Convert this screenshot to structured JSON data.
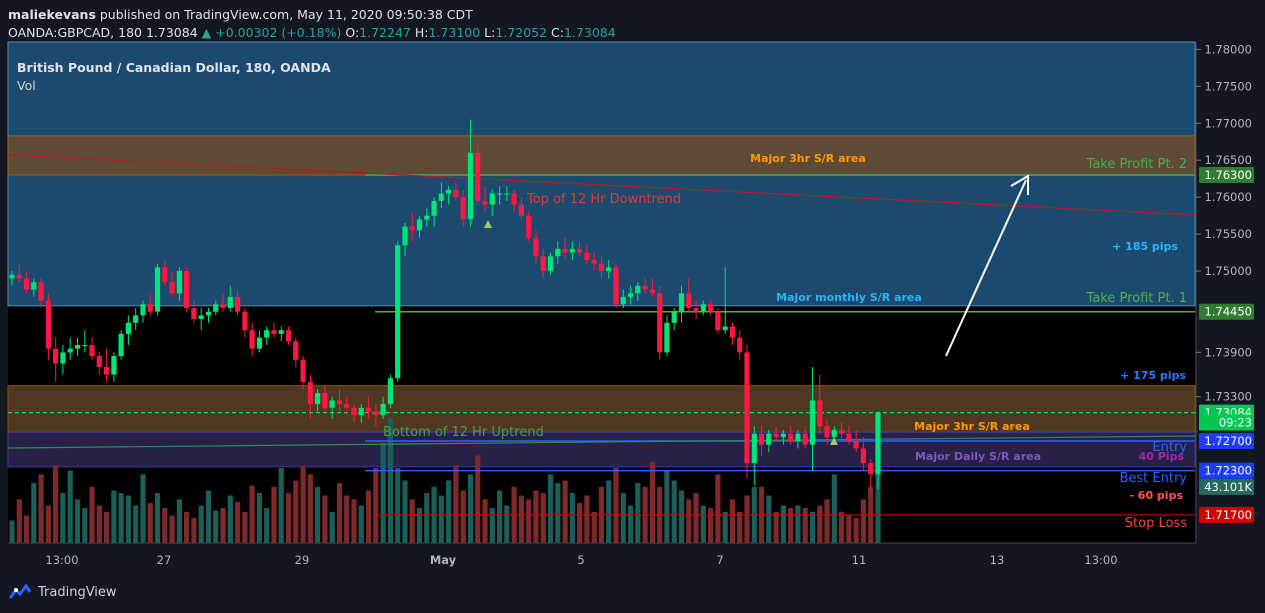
{
  "header": {
    "user": "maliekevans",
    "published_text": " published on TradingView.com, May 11, 2020 09:50:38 CDT",
    "symbol": "OANDA:GBPCAD, 180",
    "price": "1.73084",
    "change": "+0.00302 (+0.18%)",
    "open_label": "O:",
    "open": "1.72247",
    "high_label": "H:",
    "high": "1.73100",
    "low_label": "L:",
    "low": "1.72052",
    "close_label": "C:",
    "close": "1.73084"
  },
  "legend": {
    "title": "British Pound / Canadian Dollar, 180, OANDA",
    "indicator": "Vol"
  },
  "footer": {
    "brand": "TradingView"
  },
  "colors": {
    "bg": "#131722",
    "up": "#00e676",
    "down": "#ff1744",
    "vol_up": "#1b5e5a",
    "vol_down": "#7f2a2a",
    "blue_zone": "#1c4a6e",
    "orange_zone": "#6b4a2e",
    "purple_zone": "#2e2450"
  },
  "chart_data": {
    "type": "candlestick",
    "title": "British Pound / Canadian Dollar, 180, OANDA",
    "ylim": [
      1.7132,
      1.781
    ],
    "y_ticks": [
      "1.78000",
      "1.77500",
      "1.77000",
      "1.76500",
      "1.76000",
      "1.75500",
      "1.75000",
      "1.73900",
      "1.73300"
    ],
    "x_ticks": [
      "13:00",
      "27",
      "29",
      "May",
      "5",
      "7",
      "11",
      "13",
      "13:00"
    ],
    "price_badges": [
      {
        "label": "1.76300",
        "value": 1.763,
        "color": "#2e7d32"
      },
      {
        "label": "1.74450",
        "value": 1.7445,
        "color": "#2e7d32"
      },
      {
        "label": "1.73084",
        "value": 1.73084,
        "color": "#00c853"
      },
      {
        "label": "09:23",
        "value": 1.7295,
        "color": "#00c853"
      },
      {
        "label": "1.72700",
        "value": 1.727,
        "color": "#1e3cff"
      },
      {
        "label": "1.72300",
        "value": 1.723,
        "color": "#1e3cff"
      },
      {
        "label": "43.101K",
        "value": 1.7208,
        "color": "#26695f"
      },
      {
        "label": "1.71700",
        "value": 1.717,
        "color": "#d50000"
      }
    ],
    "zones": [
      {
        "name": "blue-zone",
        "y1": 1.781,
        "y2": 1.7453,
        "label": ""
      },
      {
        "name": "orange-zone-top",
        "y1": 1.7683,
        "y2": 1.763,
        "label": "Major 3hr S/R area"
      },
      {
        "name": "orange-zone-bottom",
        "y1": 1.7345,
        "y2": 1.7282,
        "label": "Major 3hr S/R area"
      },
      {
        "name": "purple-zone",
        "y1": 1.7282,
        "y2": 1.7235,
        "label": "Major Daily S/R area"
      }
    ],
    "zone_labels": {
      "major_monthly": "Major monthly S/R area",
      "pips_185": "+ 185 pips",
      "pips_175": "+ 175 pips",
      "pips_40": "40 Pips",
      "pips_60": "- 60 pips"
    },
    "levels": {
      "take_profit_2": {
        "label": "Take Profit Pt. 2",
        "value": 1.763
      },
      "take_profit_1": {
        "label": "Take Profit Pt. 1",
        "value": 1.7445
      },
      "entry": {
        "label": "Entry",
        "value": 1.727
      },
      "best_entry": {
        "label": "Best Entry",
        "value": 1.723
      },
      "stop_loss": {
        "label": "Stop Loss",
        "value": 1.717
      },
      "current": {
        "value": 1.73084
      }
    },
    "trendlines": {
      "downtrend": "Top of 12 Hr Downtrend",
      "uptrend": "Bottom of 12 Hr Uptrend"
    },
    "candles": [
      [
        1.749,
        1.75,
        1.748,
        1.7495
      ],
      [
        1.7495,
        1.751,
        1.7485,
        1.749
      ],
      [
        1.749,
        1.75,
        1.747,
        1.7475
      ],
      [
        1.7475,
        1.749,
        1.7465,
        1.7485
      ],
      [
        1.7485,
        1.749,
        1.745,
        1.746
      ],
      [
        1.746,
        1.747,
        1.738,
        1.7395
      ],
      [
        1.7395,
        1.741,
        1.735,
        1.7375
      ],
      [
        1.7375,
        1.74,
        1.736,
        1.739
      ],
      [
        1.739,
        1.741,
        1.738,
        1.7395
      ],
      [
        1.7395,
        1.741,
        1.7385,
        1.74
      ],
      [
        1.74,
        1.742,
        1.739,
        1.74
      ],
      [
        1.74,
        1.741,
        1.738,
        1.7385
      ],
      [
        1.7385,
        1.739,
        1.736,
        1.737
      ],
      [
        1.737,
        1.7395,
        1.735,
        1.736
      ],
      [
        1.736,
        1.739,
        1.735,
        1.7385
      ],
      [
        1.7385,
        1.742,
        1.738,
        1.7415
      ],
      [
        1.7415,
        1.744,
        1.74,
        1.743
      ],
      [
        1.743,
        1.745,
        1.742,
        1.744
      ],
      [
        1.744,
        1.746,
        1.743,
        1.7455
      ],
      [
        1.7455,
        1.747,
        1.744,
        1.7445
      ],
      [
        1.7445,
        1.751,
        1.744,
        1.7505
      ],
      [
        1.7505,
        1.7515,
        1.748,
        1.7485
      ],
      [
        1.7485,
        1.75,
        1.7465,
        1.747
      ],
      [
        1.747,
        1.7505,
        1.746,
        1.75
      ],
      [
        1.75,
        1.7505,
        1.7445,
        1.745
      ],
      [
        1.745,
        1.746,
        1.743,
        1.7435
      ],
      [
        1.7435,
        1.745,
        1.742,
        1.744
      ],
      [
        1.744,
        1.745,
        1.743,
        1.7445
      ],
      [
        1.7445,
        1.746,
        1.744,
        1.7455
      ],
      [
        1.7455,
        1.747,
        1.7445,
        1.745
      ],
      [
        1.745,
        1.748,
        1.7445,
        1.7465
      ],
      [
        1.7465,
        1.7475,
        1.744,
        1.7445
      ],
      [
        1.7445,
        1.745,
        1.741,
        1.742
      ],
      [
        1.742,
        1.743,
        1.7385,
        1.7395
      ],
      [
        1.7395,
        1.742,
        1.739,
        1.741
      ],
      [
        1.741,
        1.7425,
        1.74,
        1.742
      ],
      [
        1.742,
        1.743,
        1.741,
        1.7415
      ],
      [
        1.7415,
        1.7425,
        1.7405,
        1.742
      ],
      [
        1.742,
        1.7425,
        1.74,
        1.7405
      ],
      [
        1.7405,
        1.741,
        1.737,
        1.738
      ],
      [
        1.738,
        1.7385,
        1.734,
        1.735
      ],
      [
        1.735,
        1.736,
        1.73,
        1.732
      ],
      [
        1.732,
        1.734,
        1.731,
        1.7335
      ],
      [
        1.7335,
        1.7345,
        1.731,
        1.7315
      ],
      [
        1.7315,
        1.733,
        1.73,
        1.7325
      ],
      [
        1.7325,
        1.734,
        1.731,
        1.732
      ],
      [
        1.732,
        1.733,
        1.7305,
        1.7315
      ],
      [
        1.7315,
        1.732,
        1.7295,
        1.7305
      ],
      [
        1.7305,
        1.732,
        1.7295,
        1.7315
      ],
      [
        1.7315,
        1.733,
        1.73,
        1.731
      ],
      [
        1.731,
        1.732,
        1.729,
        1.7305
      ],
      [
        1.7305,
        1.733,
        1.73,
        1.732
      ],
      [
        1.732,
        1.736,
        1.7315,
        1.7355
      ],
      [
        1.7355,
        1.754,
        1.735,
        1.7535
      ],
      [
        1.7535,
        1.7565,
        1.752,
        1.756
      ],
      [
        1.756,
        1.758,
        1.754,
        1.7555
      ],
      [
        1.7555,
        1.7575,
        1.7545,
        1.757
      ],
      [
        1.757,
        1.7585,
        1.756,
        1.7575
      ],
      [
        1.7575,
        1.76,
        1.756,
        1.7595
      ],
      [
        1.7595,
        1.762,
        1.7585,
        1.7605
      ],
      [
        1.7605,
        1.7615,
        1.759,
        1.761
      ],
      [
        1.761,
        1.762,
        1.7595,
        1.76
      ],
      [
        1.76,
        1.761,
        1.756,
        1.757
      ],
      [
        1.757,
        1.7705,
        1.756,
        1.766
      ],
      [
        1.766,
        1.767,
        1.759,
        1.7595
      ],
      [
        1.7595,
        1.7615,
        1.758,
        1.759
      ],
      [
        1.759,
        1.761,
        1.7575,
        1.7605
      ],
      [
        1.7605,
        1.7615,
        1.759,
        1.7605
      ],
      [
        1.7605,
        1.7615,
        1.7595,
        1.7605
      ],
      [
        1.7605,
        1.761,
        1.758,
        1.759
      ],
      [
        1.759,
        1.76,
        1.757,
        1.7575
      ],
      [
        1.7575,
        1.758,
        1.754,
        1.7545
      ],
      [
        1.7545,
        1.7555,
        1.751,
        1.752
      ],
      [
        1.752,
        1.753,
        1.749,
        1.75
      ],
      [
        1.75,
        1.7525,
        1.7495,
        1.752
      ],
      [
        1.752,
        1.754,
        1.751,
        1.753
      ],
      [
        1.753,
        1.7545,
        1.7515,
        1.7525
      ],
      [
        1.7525,
        1.754,
        1.7515,
        1.753
      ],
      [
        1.753,
        1.754,
        1.752,
        1.7525
      ],
      [
        1.7525,
        1.7535,
        1.751,
        1.7515
      ],
      [
        1.7515,
        1.7525,
        1.75,
        1.751
      ],
      [
        1.751,
        1.752,
        1.749,
        1.75
      ],
      [
        1.75,
        1.7515,
        1.749,
        1.7505
      ],
      [
        1.7505,
        1.751,
        1.745,
        1.7455
      ],
      [
        1.7455,
        1.7475,
        1.745,
        1.7465
      ],
      [
        1.7465,
        1.748,
        1.7455,
        1.747
      ],
      [
        1.747,
        1.7485,
        1.746,
        1.748
      ],
      [
        1.748,
        1.749,
        1.747,
        1.7475
      ],
      [
        1.7475,
        1.749,
        1.7465,
        1.747
      ],
      [
        1.747,
        1.748,
        1.738,
        1.739
      ],
      [
        1.739,
        1.744,
        1.7385,
        1.743
      ],
      [
        1.743,
        1.745,
        1.742,
        1.7445
      ],
      [
        1.7445,
        1.748,
        1.743,
        1.747
      ],
      [
        1.747,
        1.749,
        1.7445,
        1.745
      ],
      [
        1.745,
        1.746,
        1.7435,
        1.7445
      ],
      [
        1.7445,
        1.746,
        1.744,
        1.7455
      ],
      [
        1.7455,
        1.746,
        1.744,
        1.7445
      ],
      [
        1.7445,
        1.745,
        1.7415,
        1.742
      ],
      [
        1.742,
        1.7505,
        1.7415,
        1.7425
      ],
      [
        1.7425,
        1.743,
        1.74,
        1.741
      ],
      [
        1.741,
        1.742,
        1.738,
        1.739
      ],
      [
        1.739,
        1.74,
        1.722,
        1.724
      ],
      [
        1.724,
        1.729,
        1.721,
        1.728
      ],
      [
        1.728,
        1.729,
        1.725,
        1.7265
      ],
      [
        1.7265,
        1.7285,
        1.7255,
        1.728
      ],
      [
        1.728,
        1.729,
        1.727,
        1.7275
      ],
      [
        1.7275,
        1.7285,
        1.7265,
        1.728
      ],
      [
        1.728,
        1.729,
        1.7265,
        1.727
      ],
      [
        1.727,
        1.7285,
        1.726,
        1.728
      ],
      [
        1.728,
        1.729,
        1.726,
        1.7265
      ],
      [
        1.7265,
        1.737,
        1.723,
        1.7325
      ],
      [
        1.7325,
        1.736,
        1.728,
        1.729
      ],
      [
        1.729,
        1.73,
        1.7265,
        1.7275
      ],
      [
        1.7275,
        1.729,
        1.727,
        1.7285
      ],
      [
        1.7285,
        1.7295,
        1.727,
        1.728
      ],
      [
        1.728,
        1.729,
        1.7265,
        1.727
      ],
      [
        1.727,
        1.7285,
        1.7255,
        1.726
      ],
      [
        1.726,
        1.7275,
        1.723,
        1.724
      ],
      [
        1.724,
        1.7245,
        1.7205,
        1.7225
      ],
      [
        1.7225,
        1.731,
        1.7205,
        1.73084
      ]
    ],
    "volume": [
      0.18,
      0.35,
      0.22,
      0.48,
      0.55,
      0.3,
      0.62,
      0.4,
      0.58,
      0.35,
      0.28,
      0.45,
      0.3,
      0.25,
      0.42,
      0.4,
      0.38,
      0.3,
      0.55,
      0.32,
      0.4,
      0.28,
      0.22,
      0.35,
      0.25,
      0.2,
      0.3,
      0.42,
      0.26,
      0.28,
      0.38,
      0.33,
      0.25,
      0.46,
      0.4,
      0.28,
      0.45,
      0.6,
      0.4,
      0.5,
      0.62,
      0.55,
      0.45,
      0.38,
      0.25,
      0.48,
      0.38,
      0.35,
      0.3,
      0.42,
      0.6,
      0.8,
      1.0,
      0.6,
      0.5,
      0.35,
      0.28,
      0.4,
      0.45,
      0.38,
      0.5,
      0.62,
      0.42,
      0.55,
      0.7,
      0.35,
      0.28,
      0.42,
      0.3,
      0.45,
      0.38,
      0.35,
      0.42,
      0.4,
      0.55,
      0.48,
      0.5,
      0.4,
      0.32,
      0.38,
      0.25,
      0.45,
      0.5,
      0.6,
      0.4,
      0.3,
      0.48,
      0.45,
      0.65,
      0.45,
      0.58,
      0.5,
      0.42,
      0.35,
      0.4,
      0.3,
      0.28,
      0.55,
      0.25,
      0.35,
      0.25,
      0.38,
      0.45,
      0.45,
      0.38,
      0.25,
      0.3,
      0.28,
      0.3,
      0.28,
      0.25,
      0.3,
      0.35,
      0.55,
      0.25,
      0.22,
      0.2,
      0.35,
      0.45,
      0.55
    ]
  }
}
